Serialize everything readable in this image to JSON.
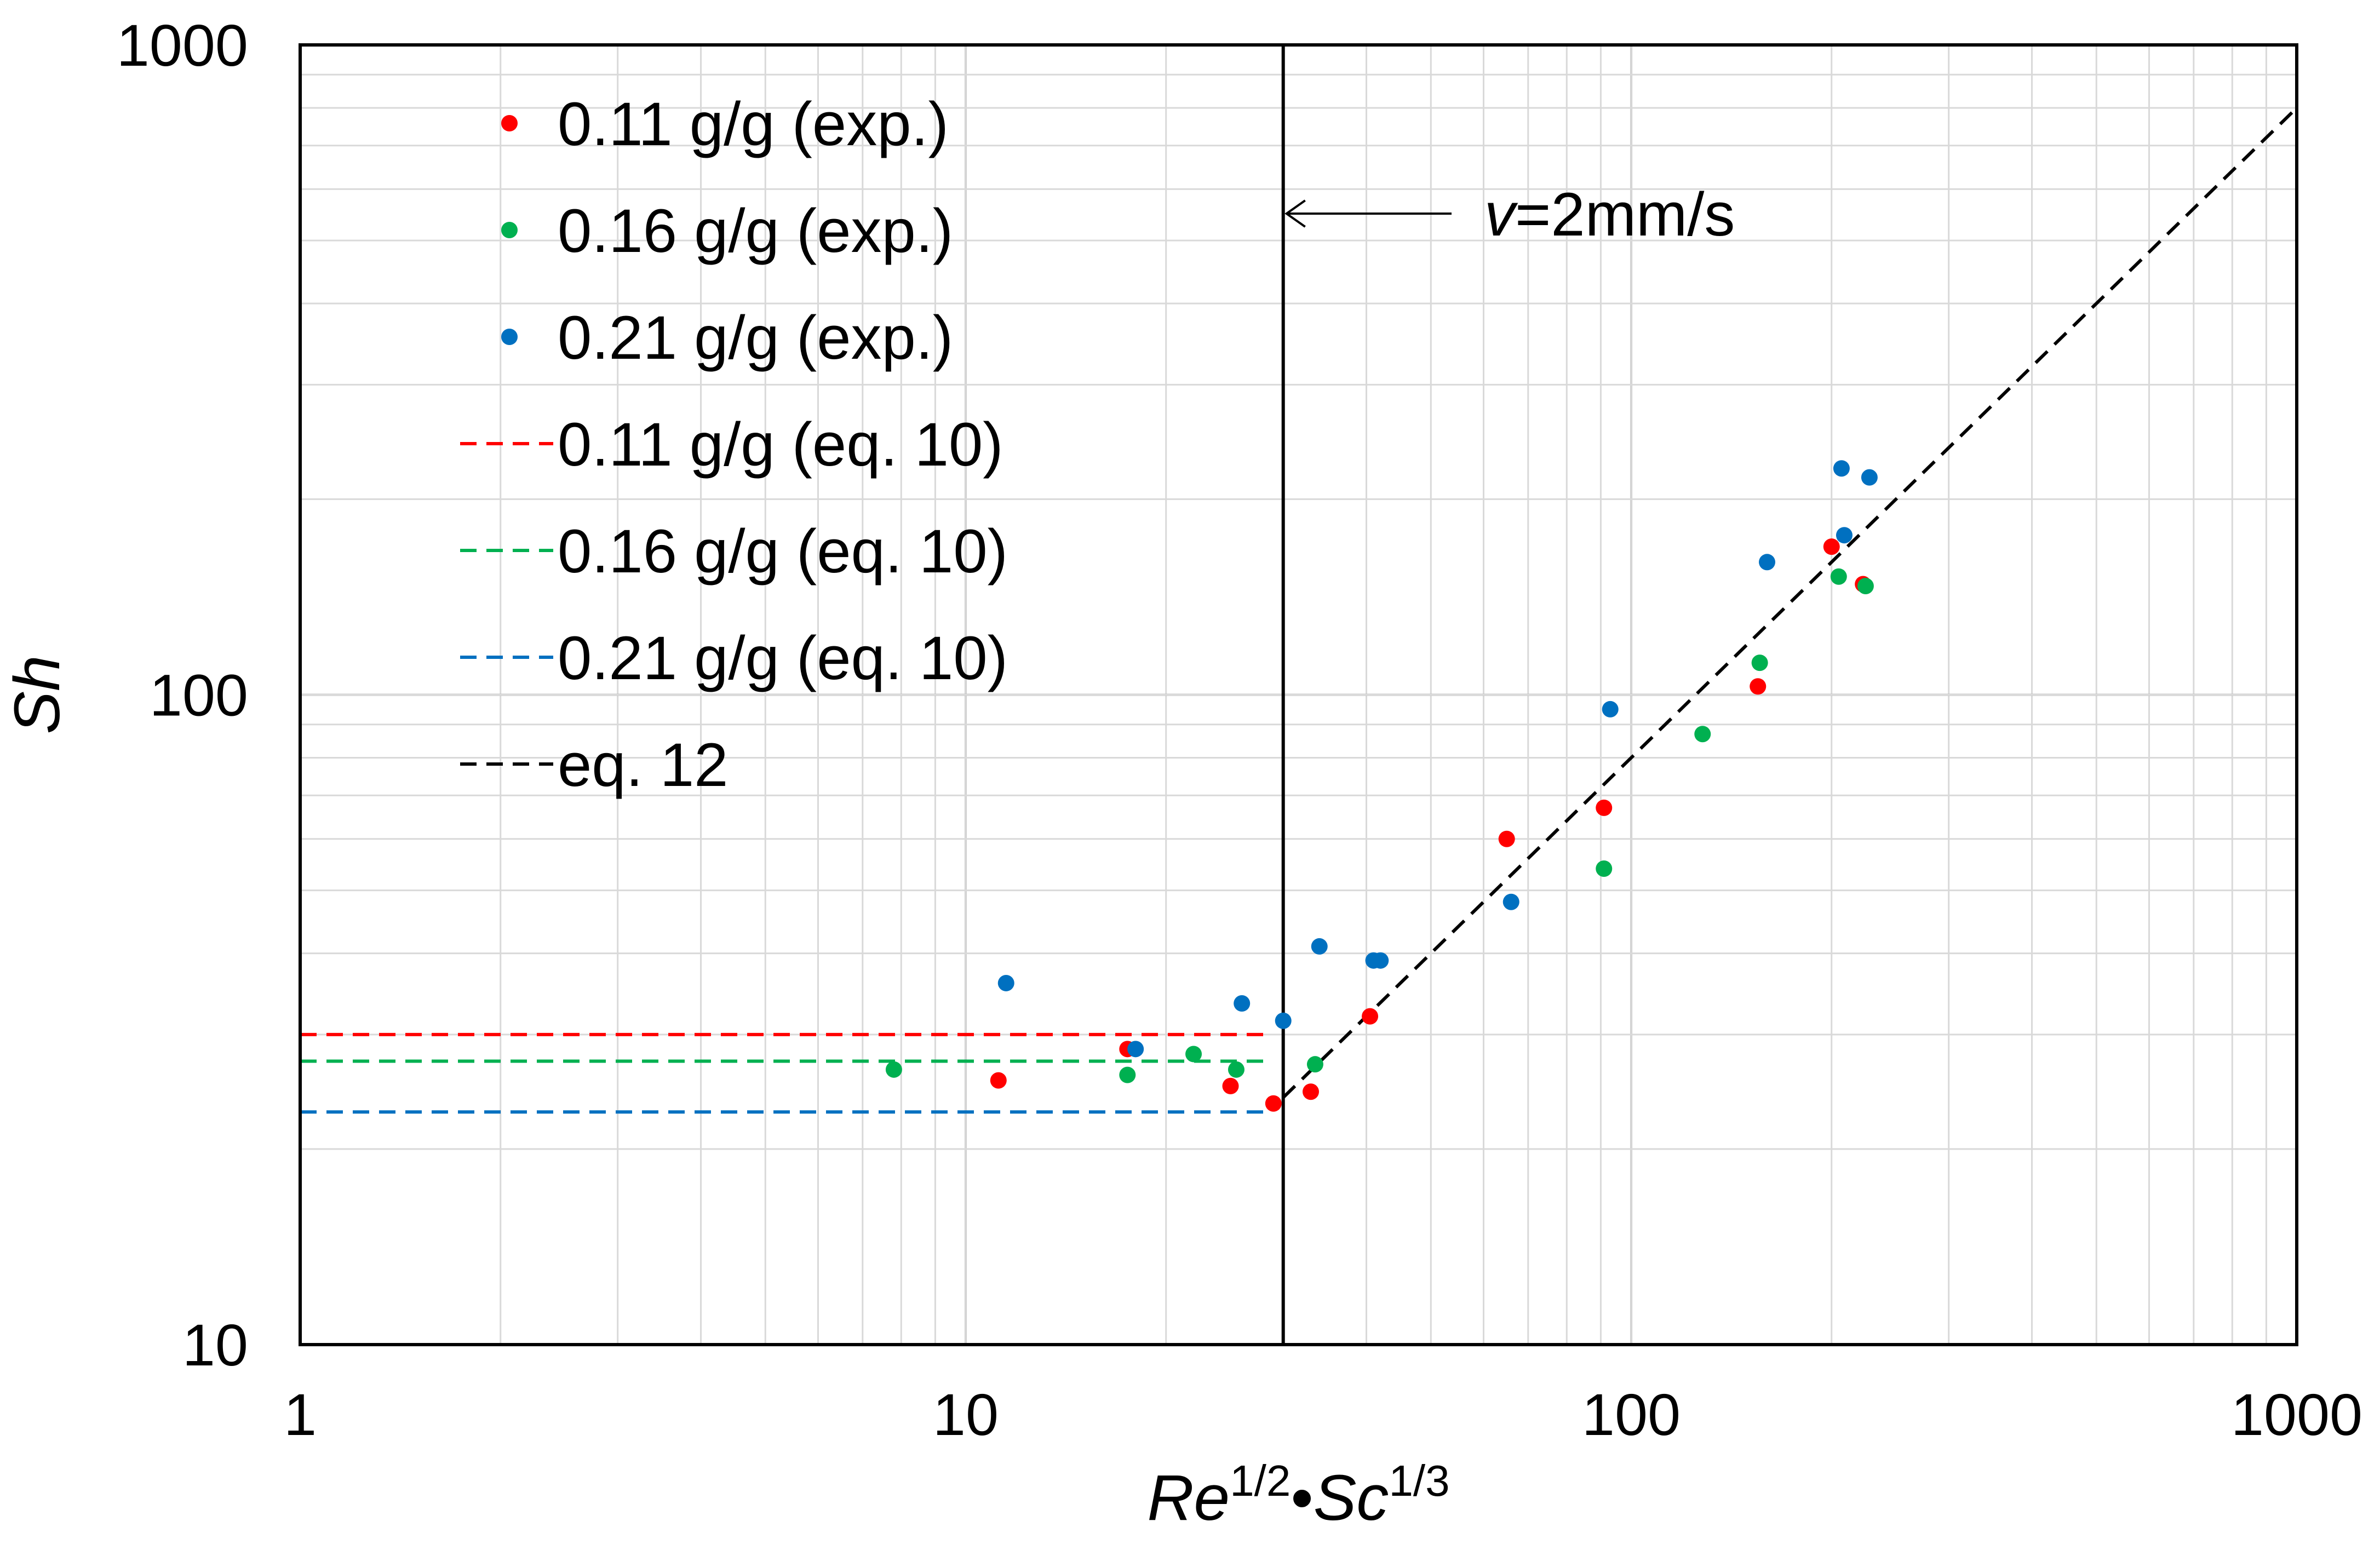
{
  "chart_data": {
    "type": "scatter",
    "x_scale": "log",
    "y_scale": "log",
    "xlim": [
      1,
      1000
    ],
    "ylim": [
      10,
      1000
    ],
    "x_ticks": [
      "1",
      "10",
      "100",
      "1000"
    ],
    "y_ticks": [
      "10",
      "100",
      "1000"
    ],
    "xlabel": {
      "re": "Re",
      "re_exp": "1/2",
      "dot": "•",
      "sc": "Sc",
      "sc_exp": "1/3"
    },
    "ylabel": "Sh",
    "grid": true,
    "legend_position": "top-left",
    "colors": {
      "red": "#ff0000",
      "green": "#00b050",
      "blue": "#0070c0",
      "black": "#000000",
      "grid": "#d9d9d9"
    },
    "series": [
      {
        "name": "0.11 g/g (exp.)",
        "kind": "points",
        "color": "#ff0000",
        "points": [
          [
            11.2,
            25.5
          ],
          [
            17.5,
            28.5
          ],
          [
            25,
            25
          ],
          [
            29,
            23.5
          ],
          [
            33,
            24.5
          ],
          [
            40.5,
            32
          ],
          [
            65,
            60
          ],
          [
            91,
            67
          ],
          [
            155,
            103
          ],
          [
            200,
            169
          ],
          [
            223,
            148
          ]
        ]
      },
      {
        "name": "0.16 g/g (exp.)",
        "kind": "points",
        "color": "#00b050",
        "points": [
          [
            7.8,
            26.5
          ],
          [
            17.5,
            26
          ],
          [
            22,
            28
          ],
          [
            25.5,
            26.5
          ],
          [
            33.5,
            27
          ],
          [
            91,
            54
          ],
          [
            128,
            87
          ],
          [
            156,
            112
          ],
          [
            205,
            152
          ],
          [
            225,
            147
          ]
        ]
      },
      {
        "name": "0.21 g/g (exp.)",
        "kind": "points",
        "color": "#0070c0",
        "points": [
          [
            11.5,
            36
          ],
          [
            18,
            28.5
          ],
          [
            26,
            33.5
          ],
          [
            30,
            31.5
          ],
          [
            34,
            41
          ],
          [
            41,
            39
          ],
          [
            42,
            39
          ],
          [
            66,
            48
          ],
          [
            93,
            95
          ],
          [
            160,
            160
          ],
          [
            207,
            223
          ],
          [
            209,
            176
          ],
          [
            228,
            216
          ]
        ]
      },
      {
        "name": "0.11 g/g (eq. 10)",
        "kind": "dashed-line",
        "color": "#ff0000",
        "x": [
          1,
          28.8
        ],
        "y": [
          30,
          30
        ]
      },
      {
        "name": "0.16 g/g (eq. 10)",
        "kind": "dashed-line",
        "color": "#00b050",
        "x": [
          1,
          28.8
        ],
        "y": [
          27.3,
          27.3
        ]
      },
      {
        "name": "0.21 g/g (eq. 10)",
        "kind": "dashed-line",
        "color": "#0070c0",
        "x": [
          1,
          28.8
        ],
        "y": [
          22.8,
          22.8
        ]
      },
      {
        "name": "eq. 12",
        "kind": "dashed-line",
        "color": "#000000",
        "x": [
          30,
          1000
        ],
        "y": [
          24,
          800
        ]
      }
    ],
    "annotation": {
      "label_var": "v",
      "label_rest": "=2mm/s",
      "x_value": 30
    }
  }
}
